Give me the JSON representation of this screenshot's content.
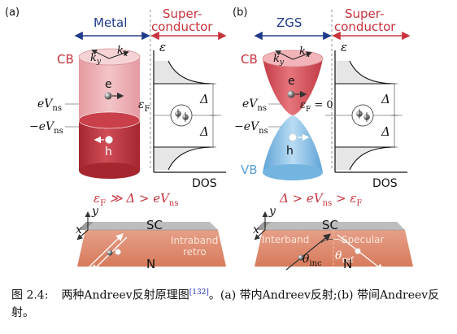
{
  "panel_a": {
    "label": "(a)",
    "header_left": "Metal",
    "header_right_line1": "Super-",
    "header_right_line2": "conductor",
    "axis_energy": "ε",
    "cb_label": "CB",
    "ky": "k",
    "ky_sub": "y",
    "kx": "k",
    "kx_sub": "x",
    "electron": "e",
    "hole": "h",
    "evns_pos": "eV",
    "evns_pos_sub": "ns",
    "evns_neg": "−eV",
    "evns_neg_sub": "ns",
    "fermi": "ε",
    "fermi_sub": "F",
    "delta_top": "Δ",
    "delta_bottom": "Δ",
    "dos": "DOS",
    "condition": "ε",
    "condition_sub": "F",
    "condition_rest": " ≫ Δ > eV",
    "condition_sub2": "ns",
    "bottom_y": "y",
    "bottom_x": "x",
    "sc": "SC",
    "intraband_line1": "Intraband",
    "intraband_line2": "retro",
    "n": "N"
  },
  "panel_b": {
    "label": "(b)",
    "header_left": "ZGS",
    "header_right_line1": "Super-",
    "header_right_line2": "conductor",
    "axis_energy": "ε",
    "cb_label": "CB",
    "vb_label": "VB",
    "ky": "k",
    "ky_sub": "y",
    "kx": "k",
    "kx_sub": "x",
    "electron": "e",
    "hole": "h",
    "evns_pos": "eV",
    "evns_pos_sub": "ns",
    "evns_neg": "−eV",
    "evns_neg_sub": "ns",
    "fermi": "ε",
    "fermi_sub": "F",
    "fermi_rest": " = 0",
    "delta_top": "Δ",
    "delta_bottom": "Δ",
    "dos": "DOS",
    "condition_pre": "Δ > eV",
    "condition_sub": "ns",
    "condition_mid": " > ε",
    "condition_sub2": "F",
    "bottom_y": "y",
    "bottom_x": "x",
    "sc": "SC",
    "interband": "Interband",
    "specular": "Specular",
    "theta_inc": "θ",
    "theta_inc_sub": "inc",
    "theta_ref": "θ",
    "theta_ref_sub": "ref",
    "n": "N"
  },
  "caption": {
    "figure_no": "图 2.4:",
    "text_before_ref": "两种Andreev反射原理图",
    "ref": "[132]",
    "text_after_ref": "。(a) 带内Andreev反射;(b) 带间Andreev反射。"
  },
  "colors": {
    "metal_red": "#c9404a",
    "red_text": "#c8323c",
    "blue_text": "#1f3a8a",
    "vb_blue": "#8ec2e6",
    "slab_orange": "#e08f73",
    "sc_gray": "#a7a7a7"
  }
}
